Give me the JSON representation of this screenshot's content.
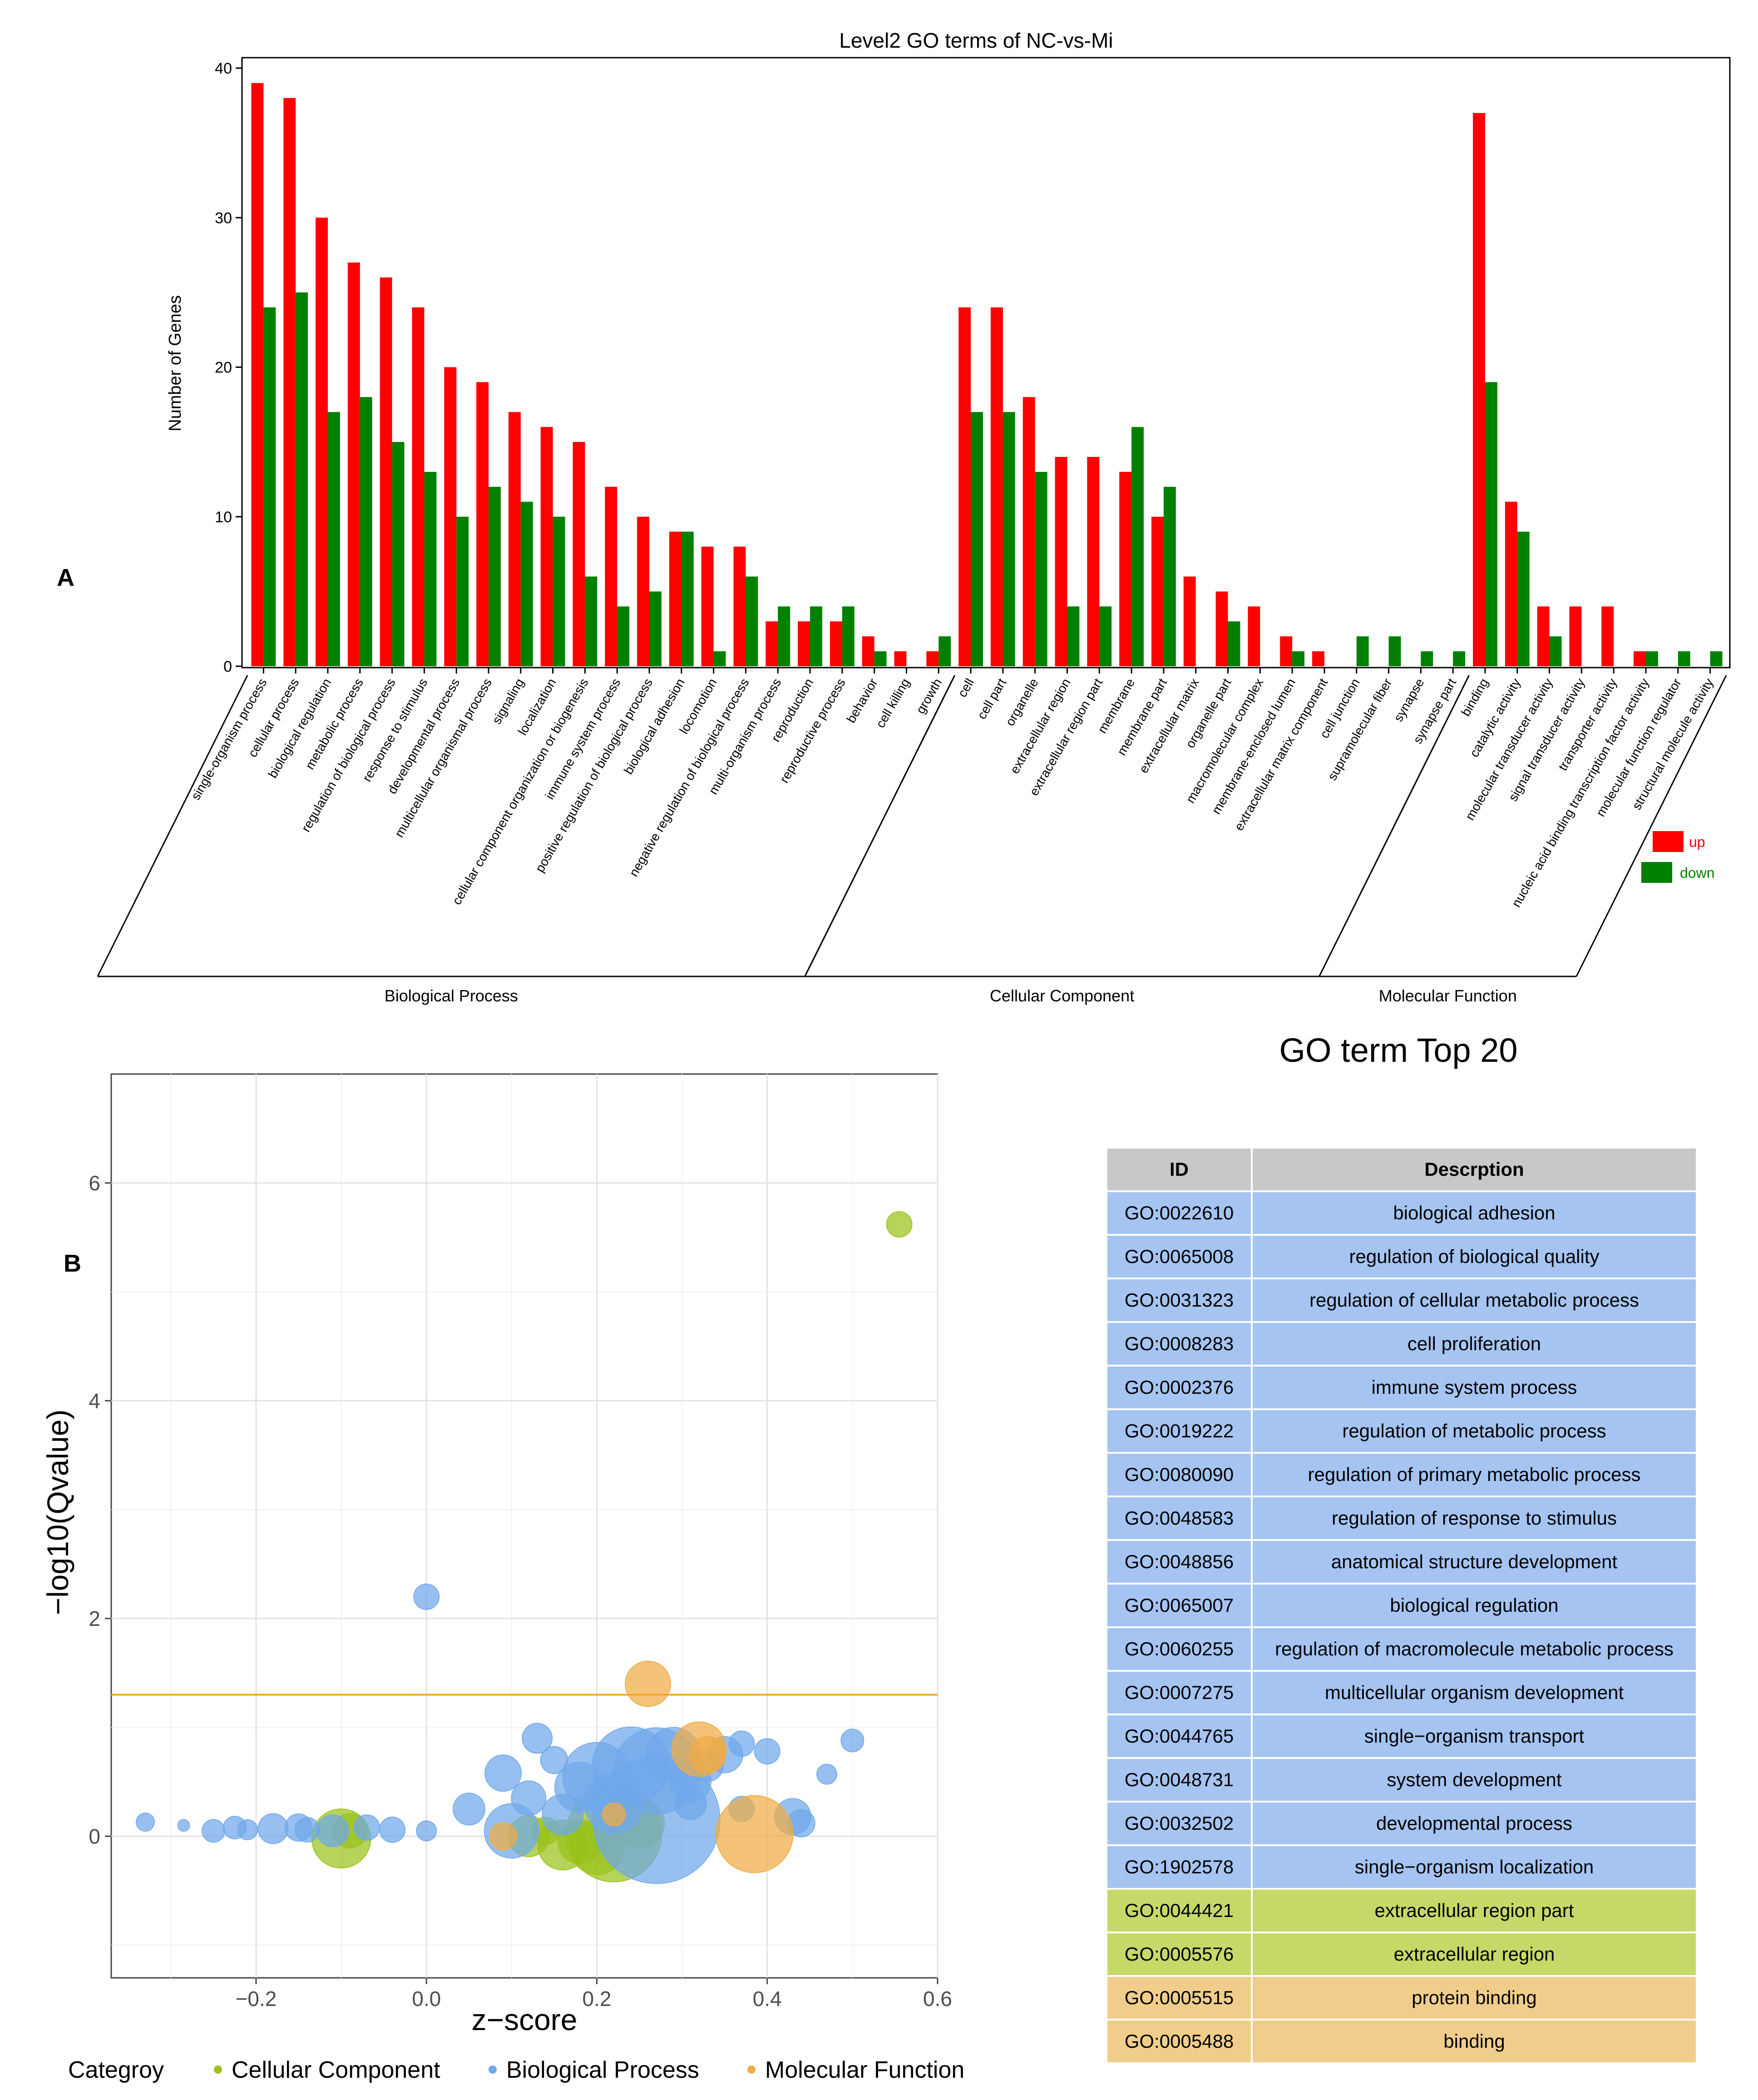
{
  "panel_labels": {
    "a": "A",
    "b": "B"
  },
  "chart_data": [
    {
      "type": "bar",
      "title": "Level2 GO terms of NC-vs-Mi",
      "ylabel": "Number of Genes",
      "ylim": [
        0,
        40
      ],
      "yticks": [
        0,
        10,
        20,
        30,
        40
      ],
      "legend": [
        "up",
        "down"
      ],
      "legend_position": "right",
      "colors": {
        "up": "#ff0000",
        "down": "#008000"
      },
      "groups": [
        {
          "name": "Biological Process",
          "start": 0,
          "end": 21
        },
        {
          "name": "Cellular Component",
          "start": 22,
          "end": 37
        },
        {
          "name": "Molecular Function",
          "start": 38,
          "end": 45
        }
      ],
      "categories": [
        "single-organism process",
        "cellular process",
        "biological regulation",
        "metabolic process",
        "regulation of biological process",
        "response to stimulus",
        "developmental process",
        "multicellular organismal process",
        "signaling",
        "localization",
        "cellular component organization or biogenesis",
        "immune system process",
        "positive regulation of biological process",
        "biological adhesion",
        "locomotion",
        "negative regulation of biological process",
        "multi-organism process",
        "reproduction",
        "reproductive process",
        "behavior",
        "cell killing",
        "growth",
        "cell",
        "cell part",
        "organelle",
        "extracellular region",
        "extracellular region part",
        "membrane",
        "membrane part",
        "extracellular matrix",
        "organelle part",
        "macromolecular complex",
        "membrane-enclosed lumen",
        "extracellular matrix component",
        "cell junction",
        "supramolecular fiber",
        "synapse",
        "synapse part",
        "binding",
        "catalytic activity",
        "molecular transducer activity",
        "signal transducer activity",
        "transporter activity",
        "nucleic acid binding transcription factor activity",
        "molecular function regulator",
        "structural molecule activity"
      ],
      "series": [
        {
          "name": "up",
          "values": [
            39,
            38,
            30,
            27,
            26,
            24,
            20,
            19,
            17,
            16,
            15,
            12,
            10,
            9,
            8,
            8,
            3,
            3,
            3,
            2,
            1,
            1,
            24,
            24,
            18,
            14,
            14,
            13,
            10,
            6,
            5,
            4,
            2,
            1,
            0,
            0,
            0,
            0,
            37,
            11,
            4,
            4,
            4,
            1,
            0,
            0
          ]
        },
        {
          "name": "down",
          "values": [
            24,
            25,
            17,
            18,
            15,
            13,
            10,
            12,
            11,
            10,
            6,
            4,
            5,
            9,
            1,
            6,
            4,
            4,
            4,
            1,
            0,
            2,
            17,
            17,
            13,
            4,
            4,
            16,
            12,
            0,
            3,
            0,
            1,
            0,
            2,
            2,
            1,
            1,
            19,
            9,
            2,
            0,
            0,
            1,
            1,
            1
          ]
        }
      ]
    },
    {
      "type": "scatter",
      "title": "",
      "xlabel": "z−score",
      "ylabel": "−log10(Qvalue)",
      "xlim": [
        -0.37,
        0.6
      ],
      "ylim": [
        -1.3,
        7.0
      ],
      "xticks": [
        -0.2,
        0.0,
        0.2,
        0.4,
        0.6
      ],
      "xtick_labels": [
        "−0.2",
        "0.0",
        "0.2",
        "0.4",
        "0.6"
      ],
      "yticks": [
        0,
        2,
        4,
        6
      ],
      "yticks_minor": [
        -1,
        1,
        3,
        5
      ],
      "xticks_minor": [
        -0.3,
        -0.1,
        0.1,
        0.3,
        0.5
      ],
      "threshold_y": 1.3,
      "threshold_color": "#f5a623",
      "grid": true,
      "legend_title": "Categroy",
      "legend_position": "bottom",
      "colors": {
        "Cellular Component": "#9ac21a",
        "Biological Process": "#6fa8ea",
        "Molecular Function": "#f0ac45"
      },
      "series": [
        {
          "name": "Cellular Component",
          "points": [
            [
              0.555,
              5.62,
              28
            ],
            [
              -0.1,
              -0.02,
              65
            ],
            [
              -0.09,
              0.05,
              38
            ],
            [
              0.12,
              0.0,
              45
            ],
            [
              0.16,
              -0.08,
              55
            ],
            [
              0.18,
              -0.05,
              48
            ],
            [
              0.22,
              0.02,
              105
            ],
            [
              0.25,
              0.12,
              55
            ],
            [
              0.14,
              0.05,
              30
            ],
            [
              0.2,
              -0.1,
              60
            ]
          ]
        },
        {
          "name": "Biological Process",
          "points": [
            [
              0.0,
              2.2,
              28
            ],
            [
              -0.33,
              0.13,
              20
            ],
            [
              -0.285,
              0.1,
              13
            ],
            [
              -0.25,
              0.05,
              25
            ],
            [
              -0.225,
              0.08,
              25
            ],
            [
              -0.21,
              0.06,
              22
            ],
            [
              -0.18,
              0.07,
              33
            ],
            [
              -0.15,
              0.08,
              30
            ],
            [
              -0.14,
              0.06,
              27
            ],
            [
              -0.11,
              0.05,
              35
            ],
            [
              -0.07,
              0.08,
              28
            ],
            [
              -0.04,
              0.06,
              28
            ],
            [
              0.0,
              0.05,
              22
            ],
            [
              0.05,
              0.25,
              35
            ],
            [
              0.09,
              0.58,
              40
            ],
            [
              0.1,
              0.05,
              60
            ],
            [
              0.12,
              0.35,
              38
            ],
            [
              0.13,
              0.9,
              33
            ],
            [
              0.15,
              0.7,
              30
            ],
            [
              0.16,
              0.2,
              45
            ],
            [
              0.18,
              0.45,
              55
            ],
            [
              0.2,
              0.55,
              75
            ],
            [
              0.22,
              0.3,
              65
            ],
            [
              0.24,
              0.65,
              85
            ],
            [
              0.27,
              0.15,
              140
            ],
            [
              0.27,
              0.6,
              95
            ],
            [
              0.29,
              0.75,
              60
            ],
            [
              0.31,
              0.5,
              45
            ],
            [
              0.33,
              0.65,
              35
            ],
            [
              0.35,
              0.75,
              40
            ],
            [
              0.37,
              0.85,
              28
            ],
            [
              0.4,
              0.78,
              28
            ],
            [
              0.31,
              0.3,
              35
            ],
            [
              0.37,
              0.25,
              28
            ],
            [
              0.43,
              0.18,
              40
            ],
            [
              0.44,
              0.12,
              30
            ],
            [
              0.47,
              0.57,
              22
            ],
            [
              0.5,
              0.88,
              25
            ]
          ]
        },
        {
          "name": "Molecular Function",
          "points": [
            [
              0.26,
              1.4,
              50
            ],
            [
              0.32,
              0.8,
              60
            ],
            [
              0.385,
              0.02,
              85
            ],
            [
              0.09,
              0.0,
              30
            ],
            [
              0.22,
              0.2,
              25
            ],
            [
              0.33,
              0.75,
              40
            ]
          ]
        }
      ]
    }
  ],
  "table": {
    "title": "GO term Top 20",
    "headers": [
      "ID",
      "Descrption"
    ],
    "rows": [
      {
        "id": "GO:0022610",
        "desc": "biological adhesion",
        "category": "bp"
      },
      {
        "id": "GO:0065008",
        "desc": "regulation of biological quality",
        "category": "bp"
      },
      {
        "id": "GO:0031323",
        "desc": "regulation of cellular metabolic process",
        "category": "bp"
      },
      {
        "id": "GO:0008283",
        "desc": "cell proliferation",
        "category": "bp"
      },
      {
        "id": "GO:0002376",
        "desc": "immune system process",
        "category": "bp"
      },
      {
        "id": "GO:0019222",
        "desc": "regulation of metabolic process",
        "category": "bp"
      },
      {
        "id": "GO:0080090",
        "desc": "regulation of primary metabolic process",
        "category": "bp"
      },
      {
        "id": "GO:0048583",
        "desc": "regulation of response to stimulus",
        "category": "bp"
      },
      {
        "id": "GO:0048856",
        "desc": "anatomical structure development",
        "category": "bp"
      },
      {
        "id": "GO:0065007",
        "desc": "biological regulation",
        "category": "bp"
      },
      {
        "id": "GO:0060255",
        "desc": "regulation of macromolecule metabolic process",
        "category": "bp"
      },
      {
        "id": "GO:0007275",
        "desc": "multicellular organism development",
        "category": "bp"
      },
      {
        "id": "GO:0044765",
        "desc": "single−organism transport",
        "category": "bp"
      },
      {
        "id": "GO:0048731",
        "desc": "system development",
        "category": "bp"
      },
      {
        "id": "GO:0032502",
        "desc": "developmental process",
        "category": "bp"
      },
      {
        "id": "GO:1902578",
        "desc": "single−organism localization",
        "category": "bp"
      },
      {
        "id": "GO:0044421",
        "desc": "extracellular region part",
        "category": "cc"
      },
      {
        "id": "GO:0005576",
        "desc": "extracellular region",
        "category": "cc"
      },
      {
        "id": "GO:0005515",
        "desc": "protein binding",
        "category": "mf"
      },
      {
        "id": "GO:0005488",
        "desc": "binding",
        "category": "mf"
      }
    ]
  }
}
